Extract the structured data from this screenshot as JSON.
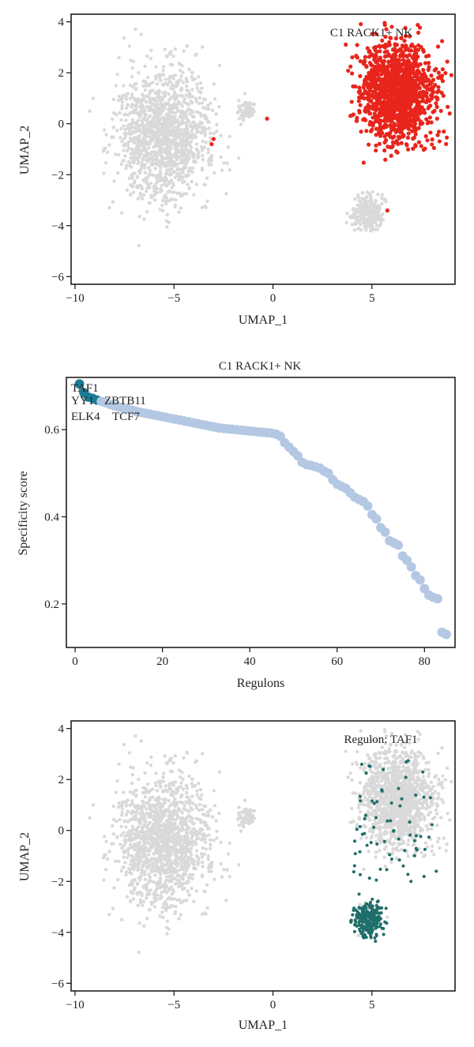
{
  "chart_data": [
    {
      "type": "scatter",
      "subtype": "umap",
      "annotation": "C1 RACK1+ NK",
      "xlabel": "UMAP_1",
      "ylabel": "UMAP_2",
      "xlim": [
        -10.2,
        9.2
      ],
      "ylim": [
        -6.3,
        4.3
      ],
      "xticks": [
        -10,
        -5,
        0,
        5
      ],
      "yticks": [
        4,
        2,
        0,
        -2,
        -4,
        -6
      ],
      "grid": false,
      "colors": {
        "background_cells": "#d9d9d9",
        "highlight_cells": "#e8251c"
      },
      "clusters": [
        {
          "name": "left-large",
          "center": [
            -5.5,
            -0.5
          ],
          "spread": [
            1.9,
            2.1
          ],
          "highlight": false
        },
        {
          "name": "small-middle",
          "center": [
            -1.3,
            0.5
          ],
          "spread": [
            0.35,
            0.3
          ],
          "highlight": false
        },
        {
          "name": "right-upper",
          "center": [
            6.3,
            1.2
          ],
          "spread": [
            1.5,
            1.6
          ],
          "highlight": true
        },
        {
          "name": "right-lower",
          "center": [
            4.8,
            -3.5
          ],
          "spread": [
            0.6,
            0.55
          ],
          "highlight": false
        }
      ]
    },
    {
      "type": "scatter",
      "title": "C1 RACK1+ NK",
      "xlabel": "Regulons",
      "ylabel": "Specificity score",
      "xlim": [
        -2,
        87
      ],
      "ylim": [
        0.1,
        0.72
      ],
      "xticks": [
        0,
        20,
        40,
        60,
        80
      ],
      "yticks": [
        0.2,
        0.4,
        0.6
      ],
      "grid": false,
      "colors": {
        "points": "#b4c8e3",
        "top_points": "#1d7b96"
      },
      "top_labels": [
        {
          "text": "TAF1",
          "rank": 1
        },
        {
          "text": "YY1",
          "rank": 2
        },
        {
          "text": "ZBTB11",
          "rank": 3
        },
        {
          "text": "ELK4",
          "rank": 4
        },
        {
          "text": "TCF7",
          "rank": 5
        }
      ],
      "x": [
        1,
        2,
        3,
        4,
        5,
        6,
        7,
        8,
        9,
        10,
        11,
        12,
        13,
        14,
        15,
        16,
        17,
        18,
        19,
        20,
        21,
        22,
        23,
        24,
        25,
        26,
        27,
        28,
        29,
        30,
        31,
        32,
        33,
        34,
        35,
        36,
        37,
        38,
        39,
        40,
        41,
        42,
        43,
        44,
        45,
        46,
        47,
        48,
        49,
        50,
        51,
        52,
        53,
        54,
        55,
        56,
        57,
        58,
        59,
        60,
        61,
        62,
        63,
        64,
        65,
        66,
        67,
        68,
        69,
        70,
        71,
        72,
        73,
        74,
        75,
        76,
        77,
        78,
        79,
        80,
        81,
        82,
        83,
        84,
        85
      ],
      "y": [
        0.705,
        0.685,
        0.675,
        0.672,
        0.668,
        0.665,
        0.662,
        0.658,
        0.655,
        0.652,
        0.65,
        0.648,
        0.645,
        0.642,
        0.64,
        0.638,
        0.636,
        0.634,
        0.632,
        0.63,
        0.628,
        0.626,
        0.624,
        0.622,
        0.62,
        0.618,
        0.616,
        0.614,
        0.612,
        0.61,
        0.608,
        0.606,
        0.604,
        0.603,
        0.602,
        0.601,
        0.6,
        0.599,
        0.598,
        0.597,
        0.596,
        0.595,
        0.594,
        0.593,
        0.592,
        0.59,
        0.585,
        0.57,
        0.56,
        0.55,
        0.54,
        0.525,
        0.52,
        0.518,
        0.515,
        0.512,
        0.505,
        0.5,
        0.485,
        0.475,
        0.47,
        0.465,
        0.455,
        0.445,
        0.44,
        0.435,
        0.425,
        0.405,
        0.395,
        0.375,
        0.365,
        0.345,
        0.34,
        0.335,
        0.31,
        0.3,
        0.285,
        0.265,
        0.255,
        0.235,
        0.22,
        0.215,
        0.212,
        0.135,
        0.13
      ]
    },
    {
      "type": "scatter",
      "subtype": "umap",
      "annotation": "Regulon: TAF1",
      "xlabel": "UMAP_1",
      "ylabel": "UMAP_2",
      "xlim": [
        -10.2,
        9.2
      ],
      "ylim": [
        -6.3,
        4.3
      ],
      "xticks": [
        -10,
        -5,
        0,
        5
      ],
      "yticks": [
        4,
        2,
        0,
        -2,
        -4,
        -6
      ],
      "grid": false,
      "colors": {
        "background_cells": "#d9d9d9",
        "highlight_cells": "#1f6e6a"
      },
      "clusters": [
        {
          "name": "left-large",
          "center": [
            -5.5,
            -0.5
          ],
          "spread": [
            1.9,
            2.1
          ],
          "highlight": false
        },
        {
          "name": "small-middle",
          "center": [
            -1.3,
            0.5
          ],
          "spread": [
            0.35,
            0.3
          ],
          "highlight": false
        },
        {
          "name": "right-upper",
          "center": [
            6.3,
            1.2
          ],
          "spread": [
            1.5,
            1.6
          ],
          "highlight": false
        },
        {
          "name": "right-lower",
          "center": [
            4.8,
            -3.5
          ],
          "spread": [
            0.6,
            0.55
          ],
          "highlight": true
        }
      ]
    }
  ]
}
